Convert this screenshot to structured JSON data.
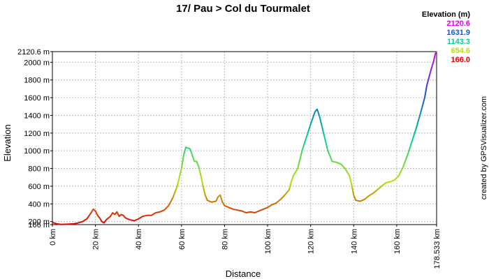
{
  "chart_data": {
    "type": "line",
    "title": "17/ Pau > Col du Tourmalet",
    "x_label": "Distance",
    "y_label": "Elevation",
    "credit": "created by GPSVisualizer.com",
    "legend_title": "Elevation (m)",
    "color_scale": {
      "values": [
        2120.6,
        1631.9,
        1143.3,
        654.6,
        166.0
      ],
      "value_labels": [
        "2120.6",
        "1631.9",
        "1143.3",
        "654.6",
        "166.0"
      ],
      "colors": [
        "#dd00dd",
        "#1a4fd6",
        "#00d090",
        "#b8e000",
        "#e00000"
      ]
    },
    "xlim": [
      0,
      178.533
    ],
    "xticks": [
      {
        "value": 0,
        "label": "0 km"
      },
      {
        "value": 20,
        "label": "20 km"
      },
      {
        "value": 40,
        "label": "40 km"
      },
      {
        "value": 60,
        "label": "60 km"
      },
      {
        "value": 80,
        "label": "80 km"
      },
      {
        "value": 100,
        "label": "100 km"
      },
      {
        "value": 120,
        "label": "120 km"
      },
      {
        "value": 140,
        "label": "140 km"
      },
      {
        "value": 160,
        "label": "160 km"
      },
      {
        "value": 178.533,
        "label": "178.533 km"
      }
    ],
    "ylim": [
      166.0,
      2120.6
    ],
    "yticks": [
      {
        "value": 166.0,
        "label": "166 m"
      },
      {
        "value": 200,
        "label": "200 m"
      },
      {
        "value": 400,
        "label": "400 m"
      },
      {
        "value": 600,
        "label": "600 m"
      },
      {
        "value": 800,
        "label": "800 m"
      },
      {
        "value": 1000,
        "label": "1000 m"
      },
      {
        "value": 1200,
        "label": "1200 m"
      },
      {
        "value": 1400,
        "label": "1400 m"
      },
      {
        "value": 1600,
        "label": "1600 m"
      },
      {
        "value": 1800,
        "label": "1800 m"
      },
      {
        "value": 2000,
        "label": "2000 m"
      },
      {
        "value": 2120.6,
        "label": "2120.6 m"
      }
    ],
    "grid": true,
    "x": [
      0,
      2,
      4,
      6,
      8,
      10,
      12,
      14,
      16,
      18,
      19,
      20,
      21,
      22,
      23,
      24,
      25,
      27,
      28,
      29,
      30,
      31,
      32,
      33,
      34,
      36,
      38,
      40,
      42,
      44,
      46,
      48,
      50,
      52,
      54,
      56,
      58,
      60,
      61,
      62,
      63,
      64,
      65,
      66,
      67,
      68,
      69,
      70,
      71,
      72,
      74,
      76,
      77,
      78,
      79,
      80,
      82,
      84,
      86,
      88,
      90,
      92,
      94,
      96,
      98,
      100,
      102,
      104,
      106,
      108,
      110,
      111,
      112,
      114,
      116,
      118,
      120,
      122,
      123,
      124,
      126,
      128,
      130,
      132,
      134,
      136,
      138,
      139,
      140,
      141,
      143,
      145,
      147,
      149,
      151,
      153,
      155,
      157,
      159,
      161,
      163,
      165,
      167,
      169,
      171,
      173,
      174,
      175,
      176,
      177,
      178,
      178.533
    ],
    "values": [
      190,
      175,
      168,
      170,
      172,
      175,
      185,
      200,
      230,
      300,
      340,
      320,
      270,
      240,
      200,
      185,
      220,
      260,
      300,
      280,
      310,
      260,
      280,
      270,
      240,
      220,
      210,
      230,
      260,
      270,
      270,
      300,
      310,
      330,
      380,
      470,
      600,
      800,
      950,
      1040,
      1030,
      1020,
      950,
      880,
      880,
      820,
      720,
      600,
      500,
      440,
      420,
      430,
      480,
      500,
      420,
      380,
      360,
      340,
      330,
      320,
      300,
      310,
      300,
      320,
      340,
      360,
      390,
      410,
      450,
      500,
      560,
      650,
      720,
      800,
      1000,
      1150,
      1300,
      1440,
      1470,
      1400,
      1200,
      1000,
      880,
      870,
      850,
      800,
      720,
      620,
      500,
      440,
      430,
      450,
      490,
      520,
      560,
      600,
      640,
      650,
      670,
      720,
      820,
      950,
      1100,
      1250,
      1420,
      1600,
      1740,
      1830,
      1920,
      2000,
      2100,
      2120.6
    ]
  }
}
